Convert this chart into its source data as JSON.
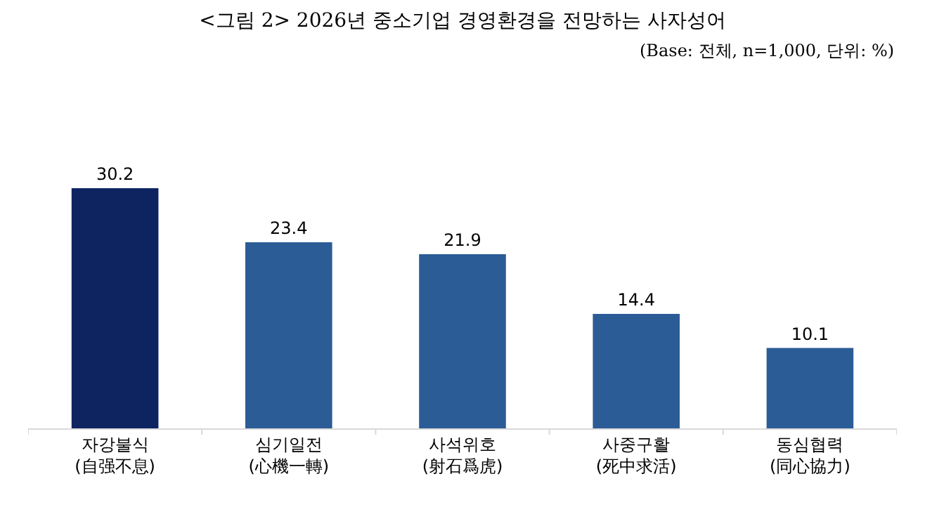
{
  "chart_data": {
    "type": "bar",
    "title": "<그림 2> 2026년 중소기업 경영환경을 전망하는 사자성어",
    "subtitle": "(Base: 전체, n=1,000, 단위: %)",
    "categories": [
      "자강불식\n(自强不息)",
      "심기일전\n(心機一轉)",
      "사석위호\n(射石爲虎)",
      "사중구활\n(死中求活)",
      "동심협력\n(同心協力)"
    ],
    "values": [
      30.2,
      23.4,
      21.9,
      14.4,
      10.1
    ],
    "colors": [
      "#0d2461",
      "#2b5c96",
      "#2b5c96",
      "#2b5c96",
      "#2b5c96"
    ],
    "tick_labels": "x",
    "data_labels": true,
    "grid": false,
    "legend": false
  }
}
